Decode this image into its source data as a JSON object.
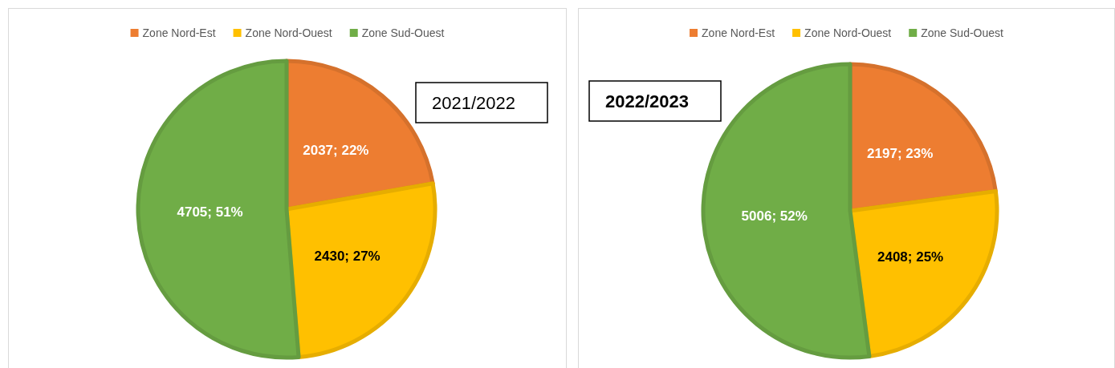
{
  "chart_data": [
    {
      "type": "pie",
      "title": "2021/2022",
      "categories": [
        "Zone Nord-Est",
        "Zone Nord-Ouest",
        "Zone Sud-Ouest"
      ],
      "values": [
        2037,
        2430,
        4705
      ],
      "colors": [
        "#ed7d31",
        "#ffc000",
        "#70ad47"
      ],
      "value_labels": [
        "2037; 22%",
        "2430; 27%",
        "4705; 51%"
      ],
      "legend": "top"
    },
    {
      "type": "pie",
      "title": "2022/2023",
      "categories": [
        "Zone Nord-Est",
        "Zone Nord-Ouest",
        "Zone Sud-Ouest"
      ],
      "values": [
        2197,
        2408,
        5006
      ],
      "colors": [
        "#ed7d31",
        "#ffc000",
        "#70ad47"
      ],
      "value_labels": [
        "2197; 23%",
        "2408; 25%",
        "5006; 52%"
      ],
      "legend": "top"
    }
  ]
}
